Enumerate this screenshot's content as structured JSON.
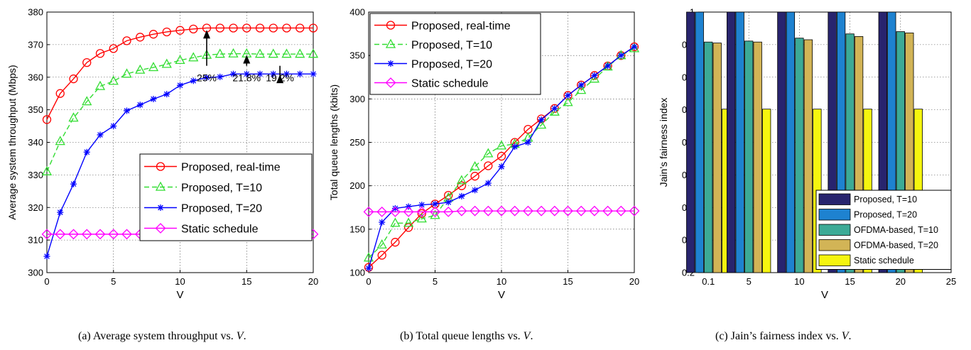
{
  "captions": [
    {
      "label": "(a)",
      "text": "Average system throughput vs.",
      "var": "V",
      "end": "."
    },
    {
      "label": "(b)",
      "text": "Total queue lengths vs.",
      "var": "V",
      "end": "."
    },
    {
      "label": "(c)",
      "text": "Jain’s fairness index vs.",
      "var": "V",
      "end": "."
    }
  ],
  "chart_data": [
    {
      "type": "line",
      "xlabel": "V",
      "ylabel": "Average system throughput (Mbps)",
      "xlim": [
        0,
        20
      ],
      "ylim": [
        300,
        380
      ],
      "xticks": [
        0,
        5,
        10,
        15,
        20
      ],
      "yticks": [
        300,
        310,
        320,
        330,
        340,
        350,
        360,
        370,
        380
      ],
      "grid": true,
      "legend_position": "center-right",
      "x": [
        0,
        1,
        2,
        3,
        4,
        5,
        6,
        7,
        8,
        9,
        10,
        11,
        12,
        13,
        14,
        15,
        16,
        17,
        18,
        19,
        20
      ],
      "series": [
        {
          "name": "Proposed, real-time",
          "color": "#ff0000",
          "marker": "circle",
          "dash": "solid",
          "values": [
            347,
            355,
            359.5,
            364.5,
            367.3,
            368.8,
            371.2,
            372.3,
            373.2,
            373.9,
            374.4,
            374.8,
            375.1,
            375.1,
            375.1,
            375.1,
            375.1,
            375.1,
            375.1,
            375.1,
            375.1
          ]
        },
        {
          "name": "Proposed, T=10",
          "color": "#33dd33",
          "marker": "triangle",
          "dash": "dashed",
          "values": [
            331,
            340.3,
            347.5,
            352.5,
            357.2,
            358.8,
            361,
            362.2,
            363,
            364,
            365.2,
            366,
            366.8,
            367.1,
            367.2,
            367.2,
            367.1,
            367.1,
            367.1,
            367.1,
            367.1
          ]
        },
        {
          "name": "Proposed, T=20",
          "color": "#0000ff",
          "marker": "star",
          "dash": "solid",
          "values": [
            305,
            318.5,
            327.2,
            337,
            342.3,
            345,
            349.7,
            351.5,
            353.3,
            354.8,
            357.5,
            358.9,
            359.9,
            360.1,
            361,
            361,
            361,
            361,
            361,
            361,
            361
          ]
        },
        {
          "name": "Static schedule",
          "color": "#ff00ff",
          "marker": "diamond",
          "dash": "solid",
          "values": [
            311.8,
            311.8,
            311.8,
            311.8,
            311.8,
            311.8,
            311.8,
            311.8,
            311.8,
            311.8,
            311.8,
            311.8,
            311.8,
            311.8,
            311.8,
            311.8,
            311.8,
            311.8,
            311.8,
            311.8,
            311.8
          ]
        }
      ],
      "annotations": [
        {
          "text": "25%",
          "x": 12,
          "y_from": 363.5,
          "y_to": 374.5
        },
        {
          "text": "21.8%",
          "x": 15,
          "y_from": 363.5,
          "y_to": 366.8
        },
        {
          "text": "19.2%",
          "x": 17.5,
          "y_from": 363.5,
          "y_to": 360.8
        }
      ]
    },
    {
      "type": "line",
      "xlabel": "V",
      "ylabel": "Total queue lengths (kbits)",
      "xlim": [
        0,
        20
      ],
      "ylim": [
        100,
        400
      ],
      "xticks": [
        0,
        5,
        10,
        15,
        20
      ],
      "yticks": [
        100,
        150,
        200,
        250,
        300,
        350,
        400
      ],
      "grid": true,
      "legend_position": "top-left",
      "x": [
        0,
        1,
        2,
        3,
        4,
        5,
        6,
        7,
        8,
        9,
        10,
        11,
        12,
        13,
        14,
        15,
        16,
        17,
        18,
        19,
        20
      ],
      "series": [
        {
          "name": "Proposed, real-time",
          "color": "#ff0000",
          "marker": "circle",
          "dash": "solid",
          "values": [
            106,
            120,
            135,
            152,
            168,
            179,
            189,
            200,
            211,
            223,
            234,
            250,
            265,
            277,
            289,
            304,
            316,
            327,
            338,
            350,
            360
          ]
        },
        {
          "name": "Proposed, T=10",
          "color": "#33dd33",
          "marker": "triangle",
          "dash": "dashed",
          "values": [
            117,
            132,
            157,
            157,
            162,
            166,
            186,
            206,
            222,
            237,
            246,
            248,
            255,
            270,
            285,
            296,
            310,
            323,
            337,
            350,
            358
          ]
        },
        {
          "name": "Proposed, T=20",
          "color": "#0000ff",
          "marker": "star",
          "dash": "solid",
          "values": [
            105,
            158,
            174,
            176,
            178,
            179,
            181,
            188,
            195,
            203,
            222,
            245,
            250,
            276,
            289,
            304,
            316,
            327,
            338,
            350,
            360
          ]
        },
        {
          "name": "Static schedule",
          "color": "#ff00ff",
          "marker": "diamond",
          "dash": "solid",
          "values": [
            170,
            170,
            170,
            170,
            170,
            170,
            170,
            171,
            171,
            171,
            171,
            171,
            171,
            171,
            171,
            171,
            171,
            171,
            171,
            171,
            171
          ]
        }
      ]
    },
    {
      "type": "bar",
      "xlabel": "V",
      "ylabel": "Jain’s fairness index",
      "xlim": [
        0,
        25
      ],
      "ylim": [
        0.2,
        1
      ],
      "xticks": [
        5,
        10,
        15,
        20,
        25
      ],
      "xtick_extra_label": "0.1",
      "yticks": [
        0.2,
        0.3,
        0.4,
        0.5,
        0.6,
        0.7,
        0.8,
        0.9,
        1
      ],
      "grid": true,
      "legend_position": "bottom-right",
      "categories": [
        "0.1",
        "5",
        "10",
        "15",
        "20"
      ],
      "category_centers": [
        1,
        5,
        10,
        15,
        20
      ],
      "series": [
        {
          "name": "Proposed, T=10",
          "color": "#28246e",
          "values": [
            1,
            1,
            1,
            1,
            1
          ]
        },
        {
          "name": "Proposed, T=20",
          "color": "#1e82d0",
          "values": [
            1,
            1,
            1,
            1,
            1
          ]
        },
        {
          "name": "OFDMA-based, T=10",
          "color": "#3caa96",
          "values": [
            0.908,
            0.911,
            0.92,
            0.933,
            0.94
          ]
        },
        {
          "name": "OFDMA-based, T=20",
          "color": "#d2b456",
          "values": [
            0.905,
            0.908,
            0.915,
            0.925,
            0.936
          ]
        },
        {
          "name": "Static schedule",
          "color": "#f5f50f",
          "values": [
            0.702,
            0.702,
            0.702,
            0.702,
            0.702
          ]
        }
      ]
    }
  ]
}
